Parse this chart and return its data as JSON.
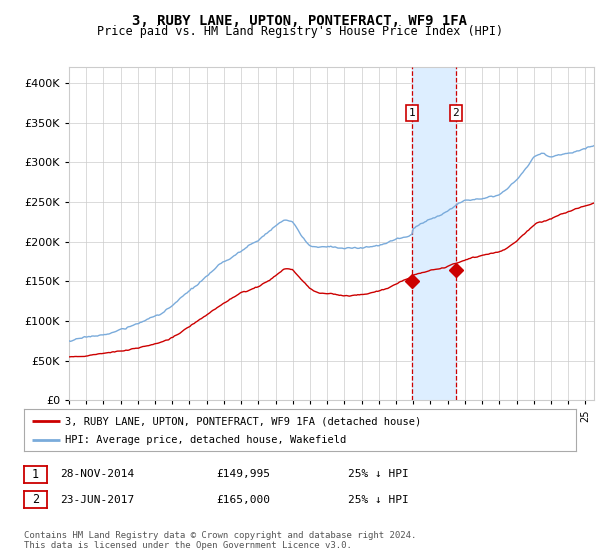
{
  "title": "3, RUBY LANE, UPTON, PONTEFRACT, WF9 1FA",
  "subtitle": "Price paid vs. HM Land Registry's House Price Index (HPI)",
  "ylim": [
    0,
    420000
  ],
  "yticks": [
    0,
    50000,
    100000,
    150000,
    200000,
    250000,
    300000,
    350000,
    400000
  ],
  "xlim_start": 1995.0,
  "xlim_end": 2025.5,
  "transaction1_date": 2014.91,
  "transaction1_price": 149995,
  "transaction2_date": 2017.48,
  "transaction2_price": 165000,
  "legend_label_red": "3, RUBY LANE, UPTON, PONTEFRACT, WF9 1FA (detached house)",
  "legend_label_blue": "HPI: Average price, detached house, Wakefield",
  "table_row1_label": "1",
  "table_row1_date": "28-NOV-2014",
  "table_row1_price": "£149,995",
  "table_row1_hpi": "25% ↓ HPI",
  "table_row2_label": "2",
  "table_row2_date": "23-JUN-2017",
  "table_row2_price": "£165,000",
  "table_row2_hpi": "25% ↓ HPI",
  "footnote": "Contains HM Land Registry data © Crown copyright and database right 2024.\nThis data is licensed under the Open Government Licence v3.0.",
  "red_color": "#cc0000",
  "blue_color": "#7aabdb",
  "shade_color": "#ddeeff",
  "grid_color": "#cccccc",
  "background_color": "#ffffff"
}
